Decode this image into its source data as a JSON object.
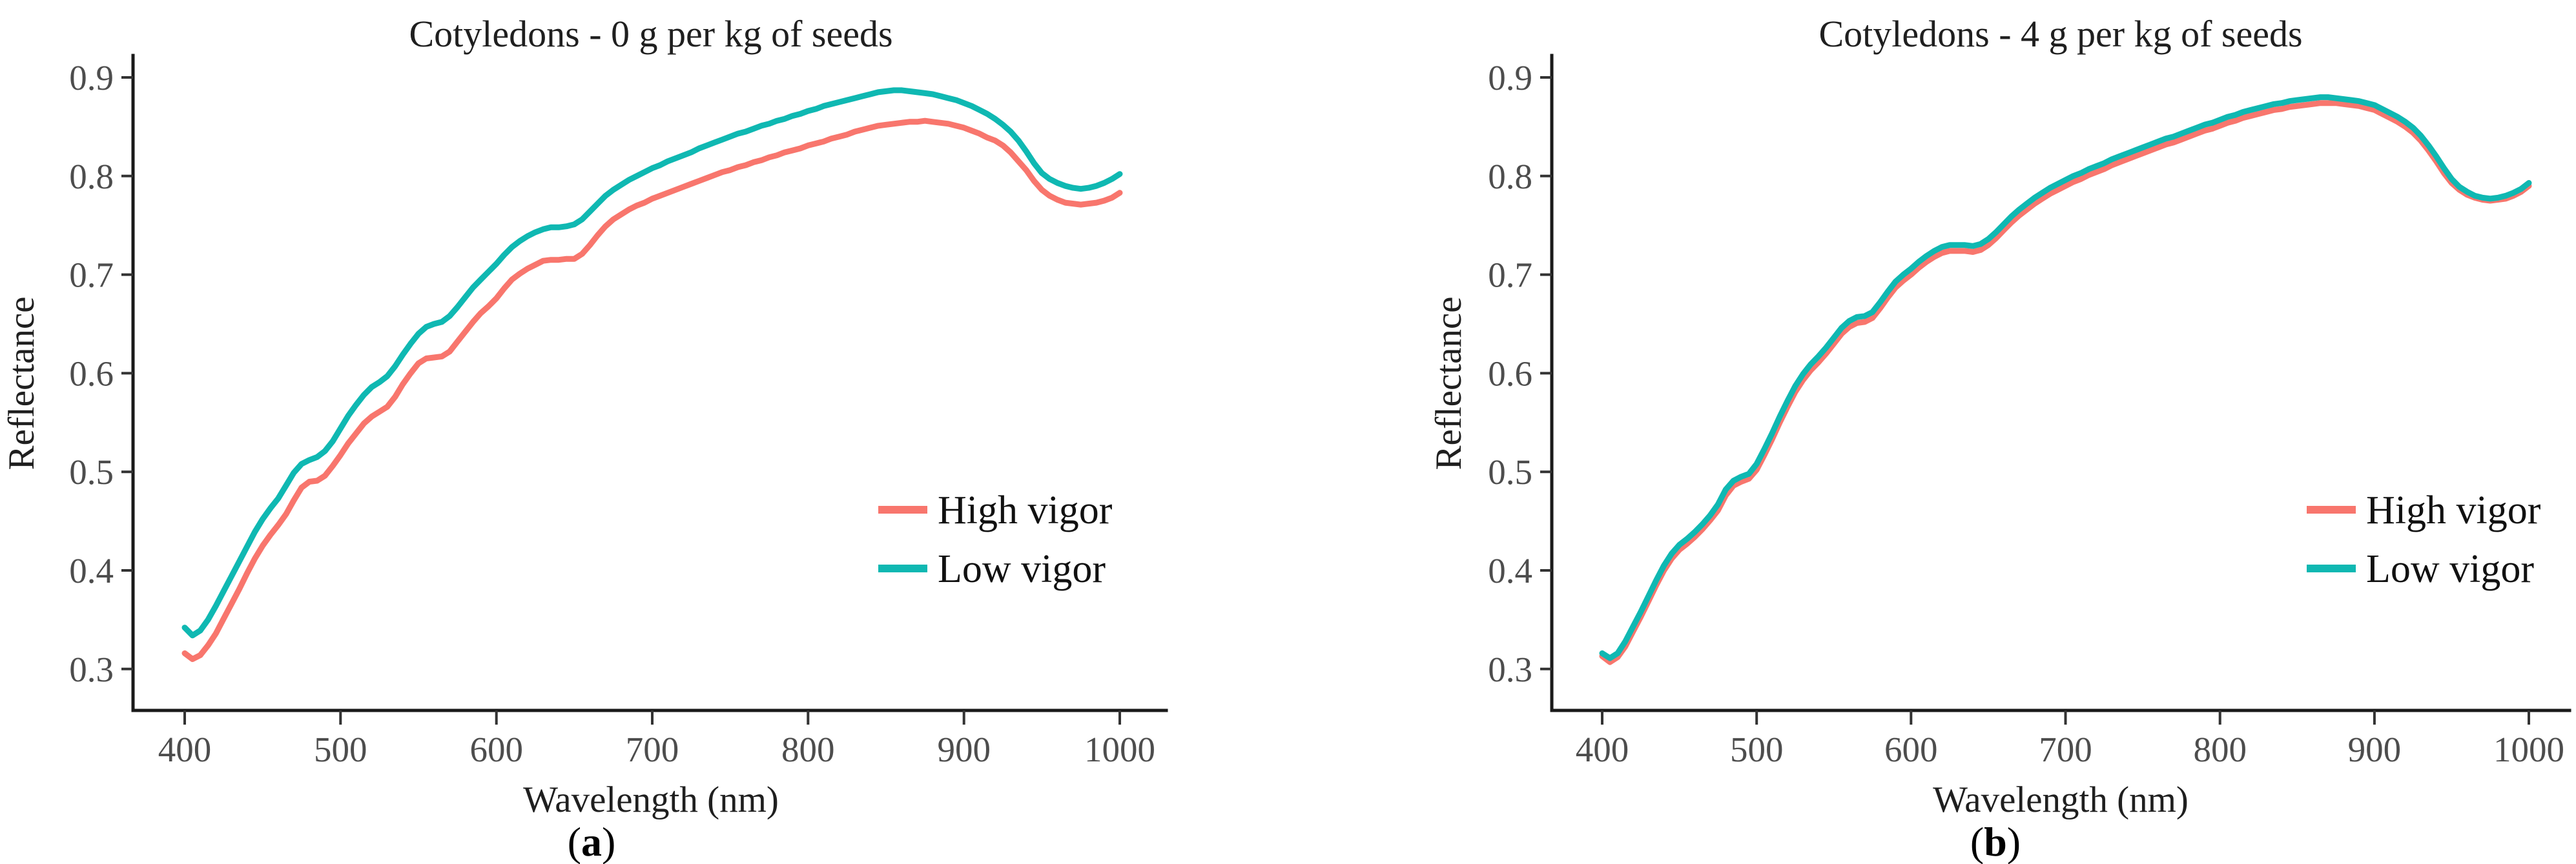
{
  "figure": {
    "background": "#ffffff",
    "accent_colors": {
      "high_vigor": "#F8766D",
      "low_vigor": "#0FB8B2"
    }
  },
  "chart_data": [
    {
      "type": "line",
      "title": "Cotyledons - 0 g per kg of seeds",
      "xlabel": "Wavelength (nm)",
      "ylabel": "Reflectance",
      "caption": {
        "open": "(",
        "letter": "a",
        "close": ")"
      },
      "xlim": [
        368,
        1030
      ],
      "ylim": [
        0.26,
        0.92
      ],
      "xticks": [
        400,
        500,
        600,
        700,
        800,
        900,
        1000
      ],
      "yticks": [
        0.3,
        0.4,
        0.5,
        0.6,
        0.7,
        0.8,
        0.9
      ],
      "grid": false,
      "legend_position": "inside-right-middle",
      "x": [
        400,
        405,
        410,
        415,
        420,
        425,
        430,
        435,
        440,
        445,
        450,
        455,
        460,
        465,
        470,
        475,
        480,
        485,
        490,
        495,
        500,
        505,
        510,
        515,
        520,
        525,
        530,
        535,
        540,
        545,
        550,
        555,
        560,
        565,
        570,
        575,
        580,
        585,
        590,
        595,
        600,
        605,
        610,
        615,
        620,
        625,
        630,
        635,
        640,
        645,
        650,
        655,
        660,
        665,
        670,
        675,
        680,
        685,
        690,
        695,
        700,
        705,
        710,
        715,
        720,
        725,
        730,
        735,
        740,
        745,
        750,
        755,
        760,
        765,
        770,
        775,
        780,
        785,
        790,
        795,
        800,
        805,
        810,
        815,
        820,
        825,
        830,
        835,
        840,
        845,
        850,
        855,
        860,
        865,
        870,
        875,
        880,
        885,
        890,
        895,
        900,
        905,
        910,
        915,
        920,
        925,
        930,
        935,
        940,
        945,
        950,
        955,
        960,
        965,
        970,
        975,
        980,
        985,
        990,
        995,
        1000
      ],
      "series": [
        {
          "name": "High vigor",
          "color": "#F8766D",
          "values": [
            0.316,
            0.31,
            0.314,
            0.324,
            0.336,
            0.351,
            0.366,
            0.381,
            0.397,
            0.412,
            0.425,
            0.436,
            0.446,
            0.457,
            0.471,
            0.484,
            0.49,
            0.491,
            0.496,
            0.506,
            0.517,
            0.529,
            0.539,
            0.549,
            0.556,
            0.561,
            0.566,
            0.576,
            0.589,
            0.6,
            0.61,
            0.615,
            0.616,
            0.617,
            0.622,
            0.632,
            0.642,
            0.652,
            0.661,
            0.668,
            0.676,
            0.686,
            0.695,
            0.701,
            0.706,
            0.71,
            0.714,
            0.715,
            0.715,
            0.716,
            0.716,
            0.721,
            0.73,
            0.74,
            0.749,
            0.756,
            0.761,
            0.766,
            0.77,
            0.773,
            0.777,
            0.78,
            0.783,
            0.786,
            0.789,
            0.792,
            0.795,
            0.798,
            0.801,
            0.804,
            0.806,
            0.809,
            0.811,
            0.814,
            0.816,
            0.819,
            0.821,
            0.824,
            0.826,
            0.828,
            0.831,
            0.833,
            0.835,
            0.838,
            0.84,
            0.842,
            0.845,
            0.847,
            0.849,
            0.851,
            0.852,
            0.853,
            0.854,
            0.855,
            0.855,
            0.856,
            0.855,
            0.854,
            0.853,
            0.851,
            0.849,
            0.846,
            0.843,
            0.839,
            0.836,
            0.831,
            0.824,
            0.815,
            0.806,
            0.795,
            0.786,
            0.78,
            0.776,
            0.773,
            0.772,
            0.771,
            0.772,
            0.773,
            0.775,
            0.778,
            0.783
          ]
        },
        {
          "name": "Low vigor",
          "color": "#0FB8B2",
          "values": [
            0.342,
            0.334,
            0.339,
            0.35,
            0.364,
            0.379,
            0.394,
            0.409,
            0.424,
            0.439,
            0.452,
            0.463,
            0.473,
            0.486,
            0.499,
            0.508,
            0.512,
            0.515,
            0.521,
            0.531,
            0.544,
            0.557,
            0.568,
            0.578,
            0.586,
            0.591,
            0.597,
            0.607,
            0.619,
            0.63,
            0.64,
            0.647,
            0.65,
            0.652,
            0.658,
            0.667,
            0.677,
            0.687,
            0.695,
            0.703,
            0.711,
            0.72,
            0.728,
            0.734,
            0.739,
            0.743,
            0.746,
            0.748,
            0.748,
            0.749,
            0.751,
            0.756,
            0.764,
            0.772,
            0.78,
            0.786,
            0.791,
            0.796,
            0.8,
            0.804,
            0.808,
            0.811,
            0.815,
            0.818,
            0.821,
            0.824,
            0.828,
            0.831,
            0.834,
            0.837,
            0.84,
            0.843,
            0.845,
            0.848,
            0.851,
            0.853,
            0.856,
            0.858,
            0.861,
            0.863,
            0.866,
            0.868,
            0.871,
            0.873,
            0.875,
            0.877,
            0.879,
            0.881,
            0.883,
            0.885,
            0.886,
            0.887,
            0.887,
            0.886,
            0.885,
            0.884,
            0.883,
            0.881,
            0.879,
            0.877,
            0.874,
            0.871,
            0.867,
            0.863,
            0.858,
            0.852,
            0.845,
            0.836,
            0.825,
            0.813,
            0.803,
            0.797,
            0.793,
            0.79,
            0.788,
            0.787,
            0.788,
            0.79,
            0.793,
            0.797,
            0.802
          ]
        }
      ]
    },
    {
      "type": "line",
      "title": "Cotyledons - 4 g per kg of seeds",
      "xlabel": "Wavelength (nm)",
      "ylabel": "Reflectance",
      "caption": {
        "open": "(",
        "letter": "b",
        "close": ")"
      },
      "xlim": [
        368,
        1030
      ],
      "ylim": [
        0.26,
        0.92
      ],
      "xticks": [
        400,
        500,
        600,
        700,
        800,
        900,
        1000
      ],
      "yticks": [
        0.3,
        0.4,
        0.5,
        0.6,
        0.7,
        0.8,
        0.9
      ],
      "grid": false,
      "legend_position": "inside-right-middle",
      "x": [
        400,
        405,
        410,
        415,
        420,
        425,
        430,
        435,
        440,
        445,
        450,
        455,
        460,
        465,
        470,
        475,
        480,
        485,
        490,
        495,
        500,
        505,
        510,
        515,
        520,
        525,
        530,
        535,
        540,
        545,
        550,
        555,
        560,
        565,
        570,
        575,
        580,
        585,
        590,
        595,
        600,
        605,
        610,
        615,
        620,
        625,
        630,
        635,
        640,
        645,
        650,
        655,
        660,
        665,
        670,
        675,
        680,
        685,
        690,
        695,
        700,
        705,
        710,
        715,
        720,
        725,
        730,
        735,
        740,
        745,
        750,
        755,
        760,
        765,
        770,
        775,
        780,
        785,
        790,
        795,
        800,
        805,
        810,
        815,
        820,
        825,
        830,
        835,
        840,
        845,
        850,
        855,
        860,
        865,
        870,
        875,
        880,
        885,
        890,
        895,
        900,
        905,
        910,
        915,
        920,
        925,
        930,
        935,
        940,
        945,
        950,
        955,
        960,
        965,
        970,
        975,
        980,
        985,
        990,
        995,
        1000
      ],
      "series": [
        {
          "name": "High vigor",
          "color": "#F8766D",
          "values": [
            0.313,
            0.307,
            0.312,
            0.323,
            0.338,
            0.353,
            0.369,
            0.385,
            0.4,
            0.412,
            0.421,
            0.427,
            0.434,
            0.442,
            0.451,
            0.461,
            0.476,
            0.486,
            0.49,
            0.493,
            0.502,
            0.517,
            0.533,
            0.55,
            0.566,
            0.581,
            0.593,
            0.603,
            0.611,
            0.62,
            0.63,
            0.64,
            0.647,
            0.651,
            0.652,
            0.656,
            0.666,
            0.677,
            0.687,
            0.694,
            0.7,
            0.707,
            0.713,
            0.718,
            0.722,
            0.724,
            0.724,
            0.724,
            0.723,
            0.725,
            0.73,
            0.737,
            0.745,
            0.753,
            0.76,
            0.766,
            0.772,
            0.777,
            0.782,
            0.786,
            0.79,
            0.794,
            0.797,
            0.801,
            0.804,
            0.807,
            0.811,
            0.814,
            0.817,
            0.82,
            0.823,
            0.826,
            0.829,
            0.832,
            0.834,
            0.837,
            0.84,
            0.843,
            0.846,
            0.848,
            0.851,
            0.854,
            0.856,
            0.859,
            0.861,
            0.863,
            0.865,
            0.867,
            0.868,
            0.87,
            0.871,
            0.872,
            0.873,
            0.874,
            0.874,
            0.874,
            0.873,
            0.872,
            0.871,
            0.869,
            0.867,
            0.863,
            0.859,
            0.855,
            0.85,
            0.844,
            0.836,
            0.826,
            0.815,
            0.803,
            0.793,
            0.786,
            0.781,
            0.778,
            0.776,
            0.775,
            0.776,
            0.777,
            0.78,
            0.784,
            0.79
          ]
        },
        {
          "name": "Low vigor",
          "color": "#0FB8B2",
          "values": [
            0.316,
            0.311,
            0.316,
            0.328,
            0.343,
            0.358,
            0.374,
            0.39,
            0.405,
            0.417,
            0.426,
            0.432,
            0.439,
            0.447,
            0.456,
            0.467,
            0.482,
            0.491,
            0.495,
            0.498,
            0.508,
            0.523,
            0.539,
            0.556,
            0.572,
            0.587,
            0.599,
            0.609,
            0.617,
            0.626,
            0.636,
            0.646,
            0.653,
            0.657,
            0.658,
            0.662,
            0.672,
            0.683,
            0.693,
            0.7,
            0.706,
            0.713,
            0.719,
            0.724,
            0.728,
            0.73,
            0.73,
            0.73,
            0.729,
            0.731,
            0.736,
            0.743,
            0.751,
            0.759,
            0.766,
            0.772,
            0.778,
            0.783,
            0.788,
            0.792,
            0.796,
            0.8,
            0.803,
            0.807,
            0.81,
            0.813,
            0.817,
            0.82,
            0.823,
            0.826,
            0.829,
            0.832,
            0.835,
            0.838,
            0.84,
            0.843,
            0.846,
            0.849,
            0.852,
            0.854,
            0.857,
            0.86,
            0.862,
            0.865,
            0.867,
            0.869,
            0.871,
            0.873,
            0.874,
            0.876,
            0.877,
            0.878,
            0.879,
            0.88,
            0.88,
            0.879,
            0.878,
            0.877,
            0.876,
            0.874,
            0.872,
            0.868,
            0.864,
            0.86,
            0.855,
            0.849,
            0.841,
            0.831,
            0.82,
            0.808,
            0.797,
            0.789,
            0.784,
            0.78,
            0.778,
            0.777,
            0.778,
            0.78,
            0.783,
            0.787,
            0.793
          ]
        }
      ]
    }
  ]
}
